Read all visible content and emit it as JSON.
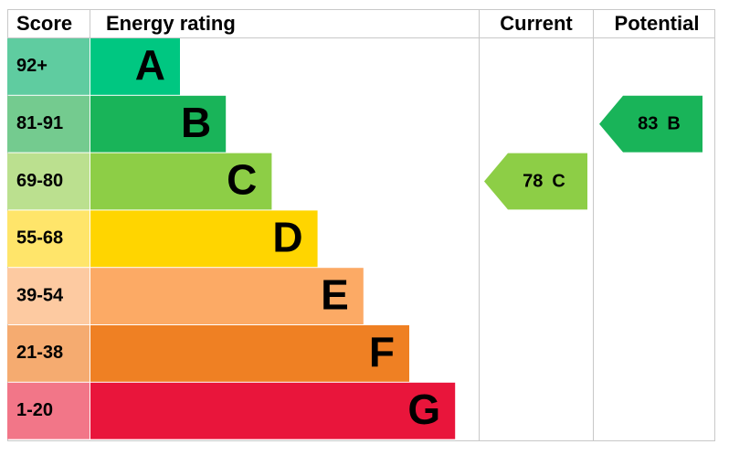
{
  "header": {
    "score": "Score",
    "rating": "Energy rating",
    "current": "Current",
    "potential": "Potential"
  },
  "bands": [
    {
      "score": "92+",
      "letter": "A",
      "color": "#00c781",
      "score_color": "#5fcca0"
    },
    {
      "score": "81-91",
      "letter": "B",
      "color": "#19b459",
      "score_color": "#74cb8f"
    },
    {
      "score": "69-80",
      "letter": "C",
      "color": "#8dce46",
      "score_color": "#bbe08f"
    },
    {
      "score": "55-68",
      "letter": "D",
      "color": "#ffd500",
      "score_color": "#ffe56a"
    },
    {
      "score": "39-54",
      "letter": "E",
      "color": "#fcaa65",
      "score_color": "#fdcaa1"
    },
    {
      "score": "21-38",
      "letter": "F",
      "color": "#ef8023",
      "score_color": "#f5ab70"
    },
    {
      "score": "1-20",
      "letter": "G",
      "color": "#e9153b",
      "score_color": "#f27688"
    }
  ],
  "current": {
    "value": 78,
    "letter": "C"
  },
  "potential": {
    "value": 83,
    "letter": "B"
  }
}
